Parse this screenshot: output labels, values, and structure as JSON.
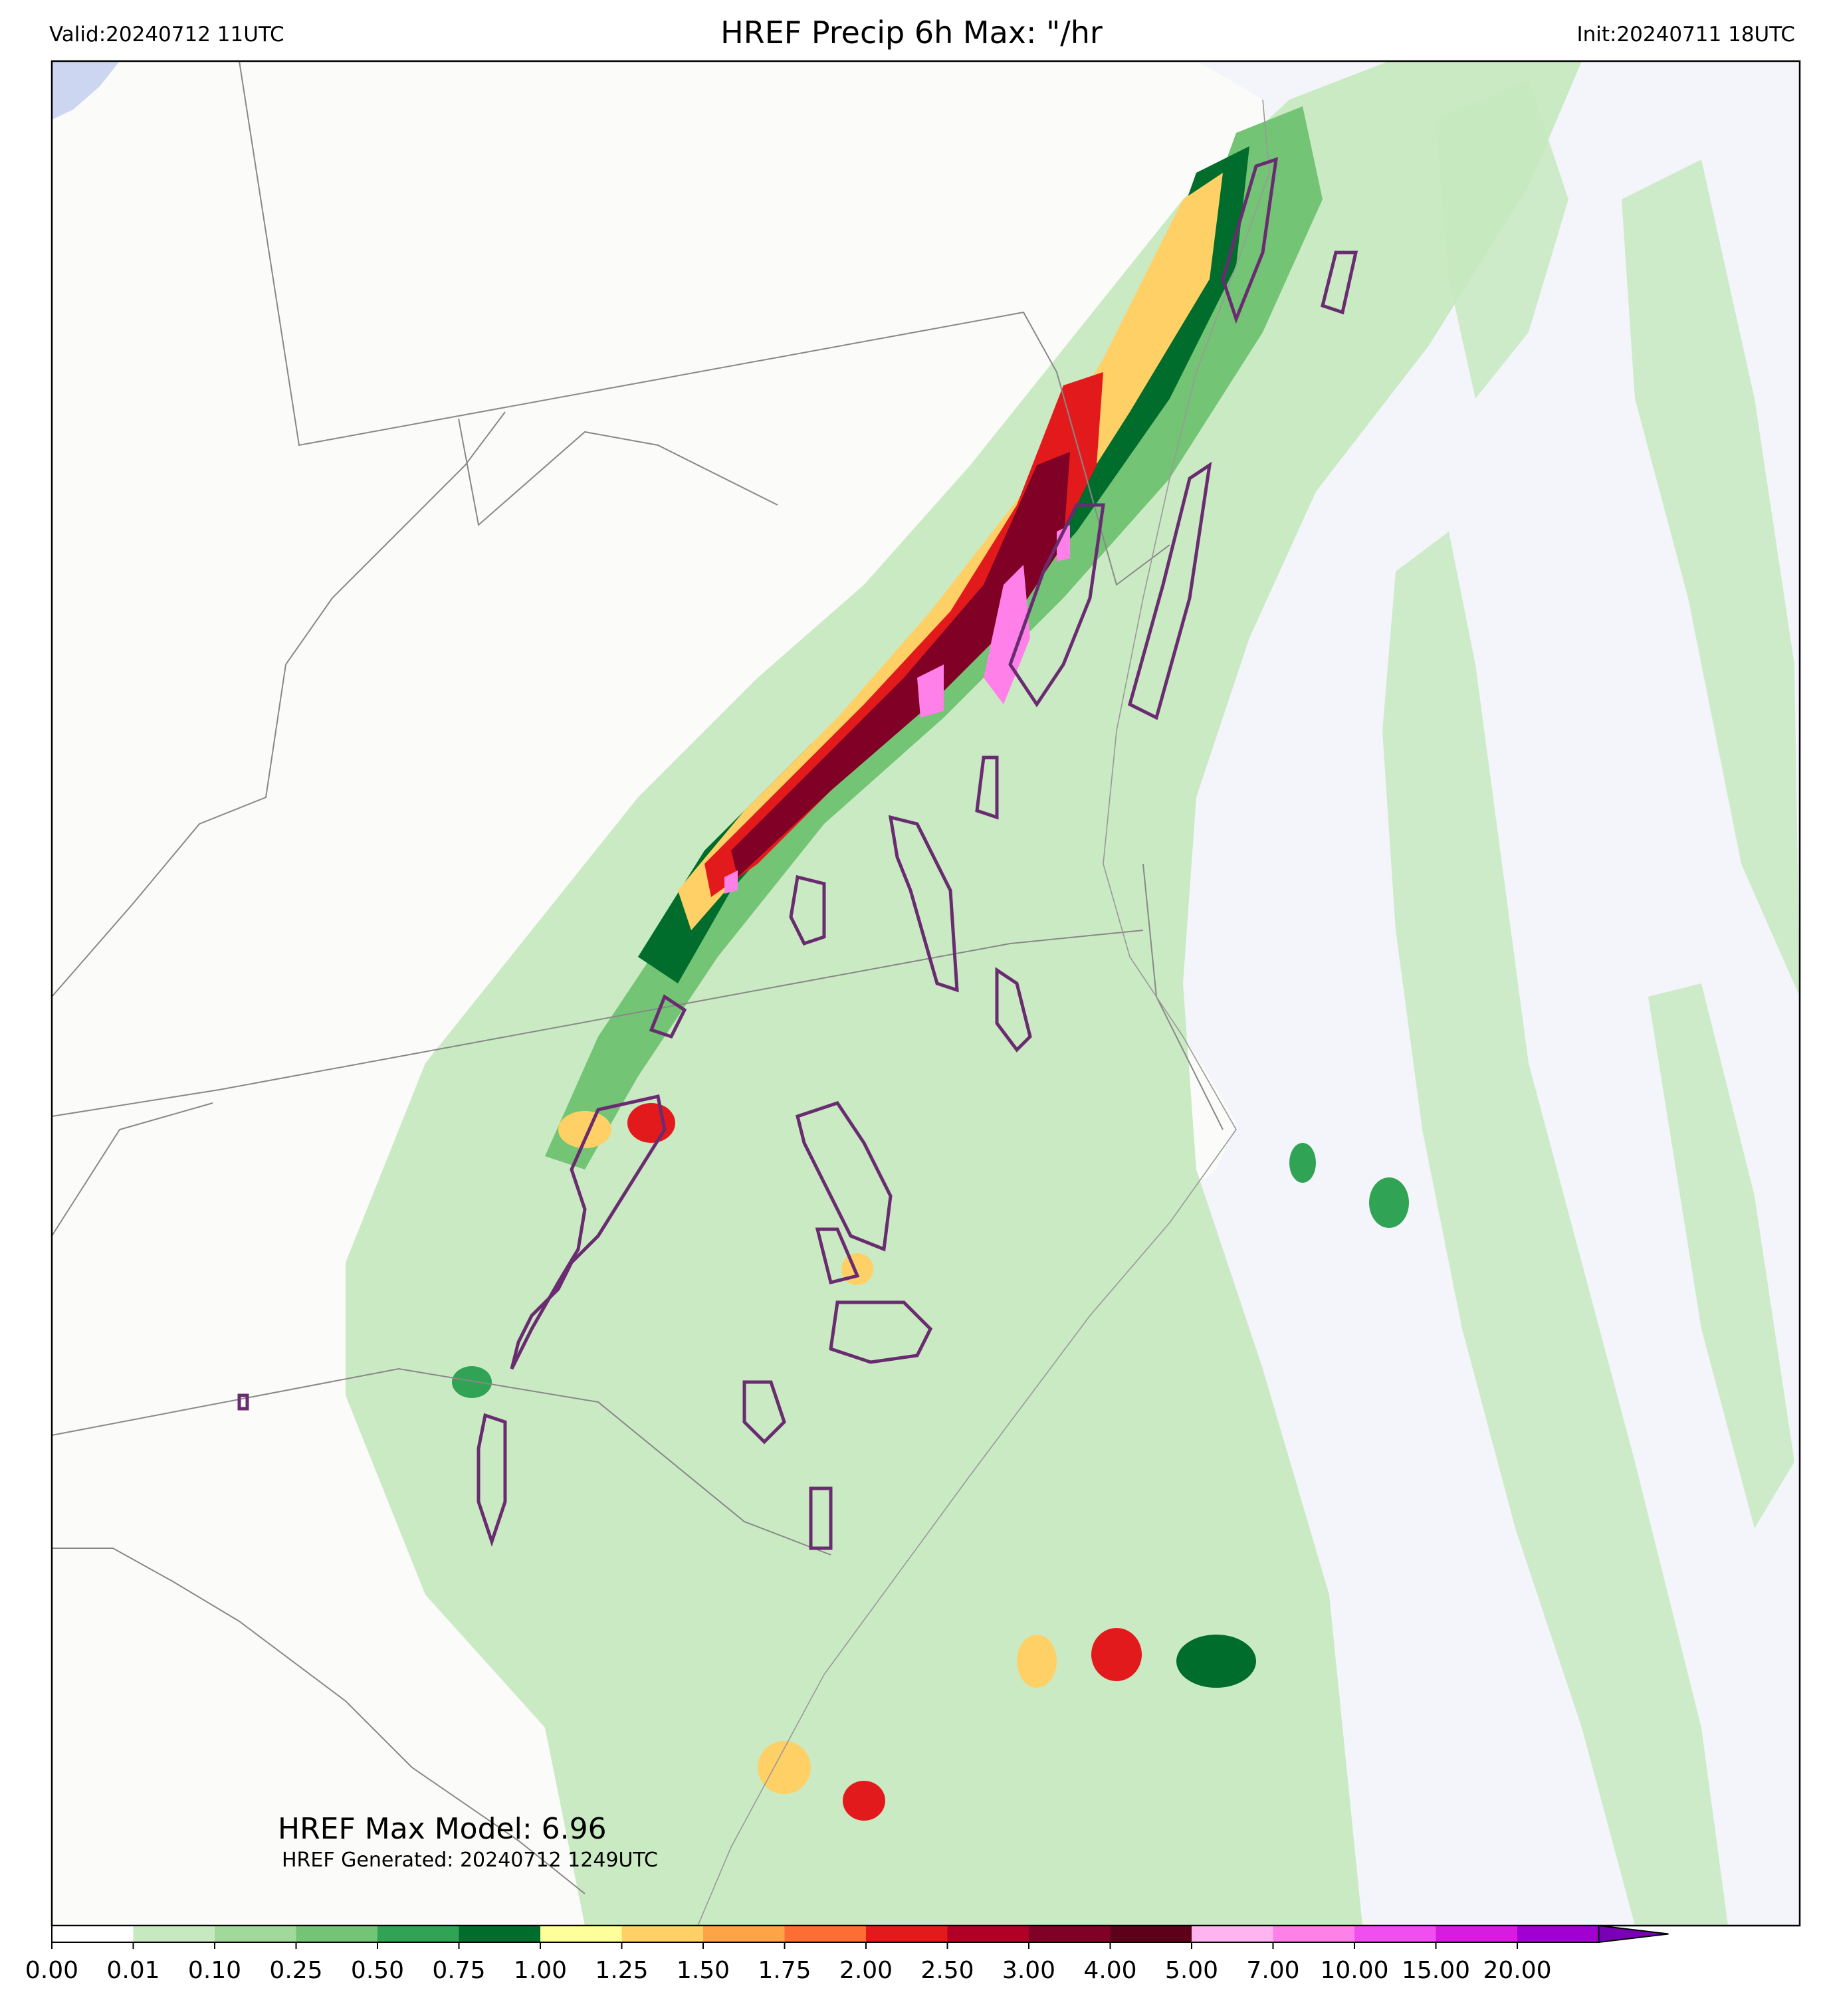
{
  "header": {
    "valid": "Valid:20240712 11UTC",
    "title": "HREF Precip 6h Max: \"/hr",
    "init": "Init:20240711 18UTC"
  },
  "annotations": {
    "max_model": "HREF Max Model: 6.96",
    "generated": "HREF Generated: 20240712 1249UTC"
  },
  "colorbar": {
    "ticks": [
      "0.00",
      "0.01",
      "0.10",
      "0.25",
      "0.50",
      "0.75",
      "1.00",
      "1.25",
      "1.50",
      "1.75",
      "2.00",
      "2.50",
      "3.00",
      "4.00",
      "5.00",
      "7.00",
      "10.00",
      "15.00",
      "20.00"
    ],
    "colors": [
      "#ffffff",
      "#c7e9c0",
      "#a1d99b",
      "#74c476",
      "#31a354",
      "#006d2c",
      "#ffff99",
      "#ffd066",
      "#fea346",
      "#fd6e33",
      "#e31a1c",
      "#b10026",
      "#800026",
      "#5e0017",
      "#ffb3f0",
      "#ff80e8",
      "#f04ef0",
      "#d81be0",
      "#a100d0",
      "#7a00b8"
    ],
    "extend": "max"
  },
  "colors": {
    "land": "#fbfbf9",
    "ocean": "#f3f5fb",
    "lake": "#ccd6f0",
    "border": "#888888",
    "contour": "#6a2c70"
  }
}
